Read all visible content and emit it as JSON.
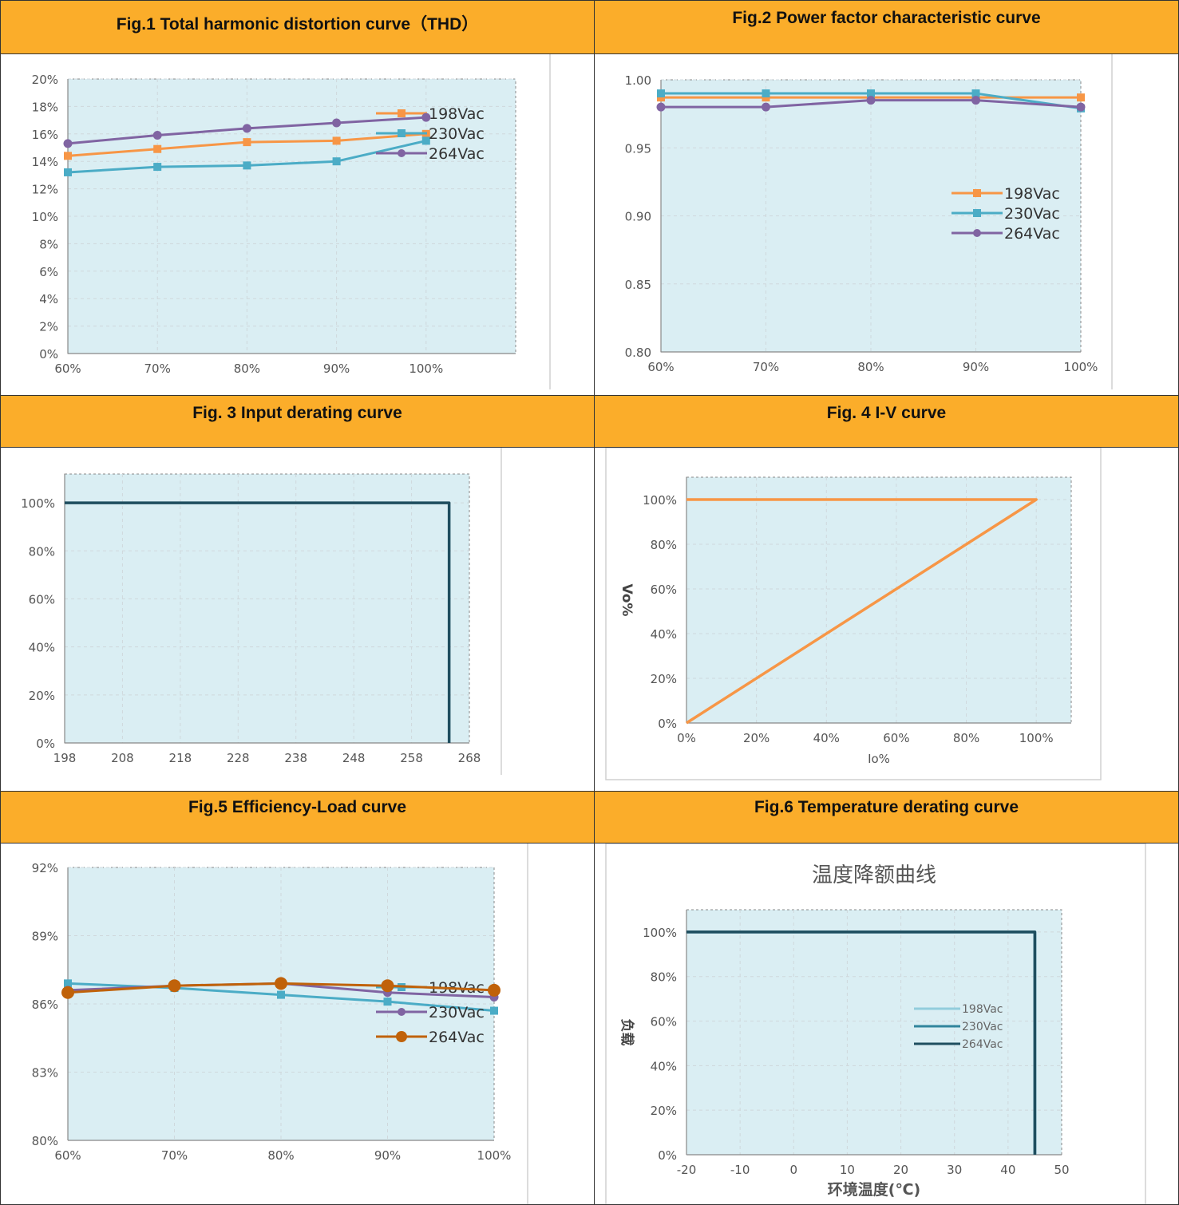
{
  "figures": [
    {
      "title": "Fig.1  Total harmonic distortion curve（THD）"
    },
    {
      "title": "Fig.2   Power factor characteristic curve"
    },
    {
      "title": "Fig. 3  Input derating curve"
    },
    {
      "title": "Fig. 4 I-V curve"
    },
    {
      "title": "Fig.5 Efficiency-Load curve"
    },
    {
      "title": "Fig.6 Temperature derating curve"
    }
  ],
  "chart_data": [
    {
      "type": "line",
      "x": [
        60,
        70,
        80,
        90,
        100
      ],
      "xticks": [
        "60%",
        "70%",
        "80%",
        "90%",
        "100%"
      ],
      "xlim": [
        60,
        110
      ],
      "yticks": [
        "0%",
        "2%",
        "4%",
        "6%",
        "8%",
        "10%",
        "12%",
        "14%",
        "16%",
        "18%",
        "20%"
      ],
      "ylim": [
        0,
        20
      ],
      "legend_position": "top-right",
      "series": [
        {
          "name": "198Vac",
          "color": "#F79646",
          "marker": "square",
          "values": [
            14.4,
            14.9,
            15.4,
            15.5,
            16.0
          ]
        },
        {
          "name": "230Vac",
          "color": "#4BACC6",
          "marker": "square",
          "values": [
            13.2,
            13.6,
            13.7,
            14.0,
            15.5
          ]
        },
        {
          "name": "264Vac",
          "color": "#8064A2",
          "marker": "circle",
          "values": [
            15.3,
            15.9,
            16.4,
            16.8,
            17.2
          ]
        }
      ]
    },
    {
      "type": "line",
      "x": [
        60,
        70,
        80,
        90,
        100
      ],
      "xticks": [
        "60%",
        "70%",
        "80%",
        "90%",
        "100%"
      ],
      "xlim": [
        60,
        100
      ],
      "yticks": [
        "0.80",
        "0.85",
        "0.90",
        "0.95",
        "1.00"
      ],
      "ylim": [
        0.8,
        1.0
      ],
      "legend_position": "right",
      "series": [
        {
          "name": "198Vac",
          "color": "#F79646",
          "marker": "square",
          "values": [
            0.987,
            0.987,
            0.987,
            0.987,
            0.987
          ]
        },
        {
          "name": "230Vac",
          "color": "#4BACC6",
          "marker": "square",
          "values": [
            0.99,
            0.99,
            0.99,
            0.99,
            0.979
          ]
        },
        {
          "name": "264Vac",
          "color": "#8064A2",
          "marker": "circle",
          "values": [
            0.98,
            0.98,
            0.985,
            0.985,
            0.98
          ]
        }
      ]
    },
    {
      "type": "line",
      "xticks": [
        "198",
        "208",
        "218",
        "228",
        "238",
        "248",
        "258",
        "268"
      ],
      "xlim": [
        198,
        268
      ],
      "yticks": [
        "0%",
        "20%",
        "40%",
        "60%",
        "80%",
        "100%"
      ],
      "ylim": [
        0,
        112
      ],
      "series": [
        {
          "color": "#1F4E5F",
          "points": [
            [
              198,
              100
            ],
            [
              264.5,
              100
            ],
            [
              264.5,
              0
            ]
          ]
        }
      ]
    },
    {
      "type": "line",
      "xticks": [
        "0%",
        "20%",
        "40%",
        "60%",
        "80%",
        "100%"
      ],
      "xlim": [
        0,
        110
      ],
      "yticks": [
        "0%",
        "20%",
        "40%",
        "60%",
        "80%",
        "100%"
      ],
      "ylim": [
        0,
        110
      ],
      "xlabel": "Io%",
      "ylabel": "Vo%",
      "series": [
        {
          "color": "#F79646",
          "points": [
            [
              0,
              100
            ],
            [
              100,
              100
            ],
            [
              0,
              0
            ]
          ]
        }
      ]
    },
    {
      "type": "line",
      "x": [
        60,
        70,
        80,
        90,
        100
      ],
      "xticks": [
        "60%",
        "70%",
        "80%",
        "90%",
        "100%"
      ],
      "xlim": [
        60,
        100
      ],
      "yticks": [
        "80%",
        "83%",
        "86%",
        "89%",
        "92%"
      ],
      "ylim": [
        80,
        92
      ],
      "legend_position": "right",
      "series": [
        {
          "name": "198Vac",
          "color": "#4BACC6",
          "marker": "square",
          "values": [
            86.9,
            86.7,
            86.4,
            86.1,
            85.7
          ]
        },
        {
          "name": "230Vac",
          "color": "#8064A2",
          "marker": "circle",
          "values": [
            86.6,
            86.8,
            86.9,
            86.5,
            86.3
          ]
        },
        {
          "name": "264Vac",
          "color": "#C0620A",
          "marker": "circle",
          "values": [
            86.5,
            86.8,
            86.9,
            86.8,
            86.6
          ]
        }
      ]
    },
    {
      "type": "line",
      "title": "温度降额曲线",
      "xticks": [
        "-20",
        "-10",
        "0",
        "10",
        "20",
        "30",
        "40",
        "50"
      ],
      "xlim": [
        -20,
        50
      ],
      "yticks": [
        "0%",
        "20%",
        "40%",
        "60%",
        "80%",
        "100%"
      ],
      "ylim": [
        0,
        110
      ],
      "xlabel": "环境温度(℃)",
      "ylabel": "负载",
      "legend_position": "right",
      "series": [
        {
          "name": "198Vac",
          "color": "#92CDDC",
          "points": [
            [
              -20,
              100
            ],
            [
              45,
              100
            ],
            [
              45,
              0
            ]
          ]
        },
        {
          "name": "230Vac",
          "color": "#31859C",
          "points": [
            [
              -20,
              100
            ],
            [
              45,
              100
            ],
            [
              45,
              0
            ]
          ]
        },
        {
          "name": "264Vac",
          "color": "#1F4E5F",
          "points": [
            [
              -20,
              100
            ],
            [
              45,
              100
            ],
            [
              45,
              0
            ]
          ]
        }
      ]
    }
  ]
}
